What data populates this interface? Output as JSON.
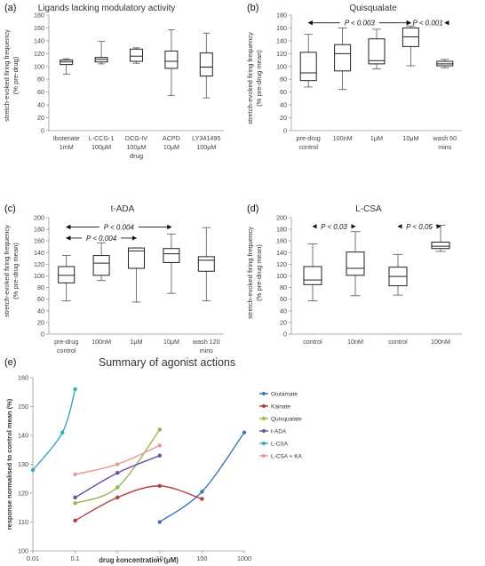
{
  "chart_data": [
    {
      "panel": "(a)",
      "type": "boxplot",
      "title": "Ligands lacking modulatory activity",
      "xlabel": "drug",
      "ylabel": [
        "stretch-evoked firing frequency",
        "(% pre-drug)"
      ],
      "ylim": [
        0,
        180
      ],
      "yticks": [
        0,
        20,
        40,
        60,
        80,
        100,
        120,
        140,
        160,
        180
      ],
      "categories": [
        [
          "Ibotenate",
          "1mM"
        ],
        [
          "L-CCG-1",
          "100μM"
        ],
        [
          "DCG-IV",
          "100μM"
        ],
        [
          "ACPD",
          "10μM"
        ],
        [
          "LY341495",
          "100μM"
        ]
      ],
      "boxes": [
        {
          "min": 88,
          "q1": 103,
          "median": 107,
          "q3": 110,
          "max": 112
        },
        {
          "min": 104,
          "q1": 107,
          "median": 111,
          "q3": 114,
          "max": 139
        },
        {
          "min": 105,
          "q1": 108,
          "median": 116,
          "q3": 127,
          "max": 129
        },
        {
          "min": 55,
          "q1": 97,
          "median": 108,
          "q3": 124,
          "max": 157
        },
        {
          "min": 51,
          "q1": 85,
          "median": 99,
          "q3": 121,
          "max": 152
        }
      ],
      "annotations": []
    },
    {
      "panel": "(b)",
      "type": "boxplot",
      "title": "Quisqualate",
      "xlabel": "",
      "ylabel": [
        "stretch-evoked firing frequency",
        "(% pre-drug mean)"
      ],
      "ylim": [
        0,
        180
      ],
      "yticks": [
        0,
        20,
        40,
        60,
        80,
        100,
        120,
        140,
        160,
        180
      ],
      "categories": [
        [
          "pre-drug",
          "control"
        ],
        [
          "100nM"
        ],
        [
          "1μM"
        ],
        [
          "10μM"
        ],
        [
          "wash 60",
          "mins"
        ]
      ],
      "boxes": [
        {
          "min": 68,
          "q1": 78,
          "median": 90,
          "q3": 122,
          "max": 150
        },
        {
          "min": 64,
          "q1": 93,
          "median": 120,
          "q3": 134,
          "max": 160
        },
        {
          "min": 96,
          "q1": 104,
          "median": 109,
          "q3": 143,
          "max": 158
        },
        {
          "min": 101,
          "q1": 131,
          "median": 146,
          "q3": 160,
          "max": 163
        },
        {
          "min": 98,
          "q1": 101,
          "median": 104,
          "q3": 108,
          "max": 111
        }
      ],
      "annotations": [
        {
          "text": "P < 0.003",
          "from": 0,
          "to": 3,
          "y": 168
        },
        {
          "text": "P < 0.001",
          "from": 3,
          "to": 4,
          "y": 168
        }
      ]
    },
    {
      "panel": "(c)",
      "type": "boxplot",
      "title": "t-ADA",
      "xlabel": "",
      "ylabel": [
        "stretch-evoked firing frequency",
        "(% pre-drug mean)"
      ],
      "ylim": [
        0,
        200
      ],
      "yticks": [
        0,
        20,
        40,
        60,
        80,
        100,
        120,
        140,
        160,
        180,
        200
      ],
      "categories": [
        [
          "pre-drug",
          "control"
        ],
        [
          "100nM"
        ],
        [
          "1μM"
        ],
        [
          "10μM"
        ],
        [
          "wash 120",
          "mins"
        ]
      ],
      "boxes": [
        {
          "min": 57,
          "q1": 88,
          "median": 101,
          "q3": 116,
          "max": 135
        },
        {
          "min": 92,
          "q1": 101,
          "median": 122,
          "q3": 135,
          "max": 157
        },
        {
          "min": 55,
          "q1": 113,
          "median": 143,
          "q3": 148,
          "max": 148
        },
        {
          "min": 70,
          "q1": 123,
          "median": 138,
          "q3": 147,
          "max": 172
        },
        {
          "min": 57,
          "q1": 108,
          "median": 127,
          "q3": 133,
          "max": 183
        }
      ],
      "annotations": [
        {
          "text": "P < 0.004",
          "from": 0,
          "to": 3,
          "y": 184
        },
        {
          "text": "P < 0.004",
          "from": 0,
          "to": 2,
          "y": 165
        }
      ]
    },
    {
      "panel": "(d)",
      "type": "boxplot",
      "title": "L-CSA",
      "xlabel": "",
      "ylabel": [
        "stretch-evoked firing frequency",
        "(% pre-drug mean)"
      ],
      "ylim": [
        0,
        200
      ],
      "yticks": [
        0,
        20,
        40,
        60,
        80,
        100,
        120,
        140,
        160,
        180,
        200
      ],
      "categories": [
        [
          "control"
        ],
        [
          "10nM"
        ],
        [
          "control"
        ],
        [
          "100nM"
        ]
      ],
      "boxes": [
        {
          "min": 57,
          "q1": 85,
          "median": 93,
          "q3": 116,
          "max": 155
        },
        {
          "min": 66,
          "q1": 101,
          "median": 113,
          "q3": 141,
          "max": 176
        },
        {
          "min": 67,
          "q1": 83,
          "median": 99,
          "q3": 115,
          "max": 137
        },
        {
          "min": 142,
          "q1": 147,
          "median": 151,
          "q3": 158,
          "max": 187
        }
      ],
      "annotations": [
        {
          "text": "P < 0.03",
          "from": 0,
          "to": 1,
          "y": 185
        },
        {
          "text": "P < 0.05",
          "from": 2,
          "to": 3,
          "y": 185
        }
      ]
    },
    {
      "panel": "(e)",
      "type": "line",
      "title": "Summary of agonist actions",
      "xlabel": "drug concentration (μM)",
      "ylabel": "response normalised to control mean  (%)",
      "xscale": "log",
      "xlim": [
        0.01,
        1000
      ],
      "xticks": [
        "0.01",
        "0.1",
        "1",
        "10",
        "100",
        "1000"
      ],
      "ylim": [
        100,
        160
      ],
      "yticks": [
        100,
        110,
        120,
        130,
        140,
        150,
        160
      ],
      "legend_position": "right",
      "series": [
        {
          "name": "Glutamate",
          "color": "#3f74b8",
          "x": [
            10,
            100,
            1000
          ],
          "values": [
            110,
            120.5,
            141
          ]
        },
        {
          "name": "Kainate",
          "color": "#b83a3a",
          "x": [
            0.1,
            1,
            10,
            100
          ],
          "values": [
            110.5,
            118.5,
            122.5,
            118
          ]
        },
        {
          "name": "Quisqualate",
          "color": "#98b74a",
          "x": [
            0.1,
            1,
            10
          ],
          "values": [
            116.5,
            122,
            142
          ]
        },
        {
          "name": "t-ADA",
          "color": "#6f4f9d",
          "x": [
            0.1,
            1,
            10
          ],
          "values": [
            118.5,
            127,
            133
          ]
        },
        {
          "name": "L-CSA",
          "color": "#3aa8c0",
          "x": [
            0.01,
            0.05,
            0.1
          ],
          "values": [
            128,
            141,
            156
          ]
        },
        {
          "name": "L-CSA + KA",
          "color": "#e89896",
          "x": [
            0.1,
            1,
            10
          ],
          "values": [
            126.5,
            130,
            136.5
          ]
        }
      ]
    }
  ]
}
